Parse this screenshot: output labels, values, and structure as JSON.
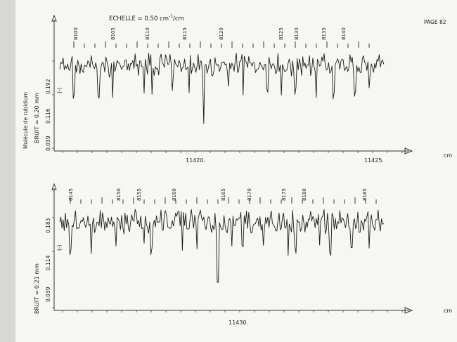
{
  "header": {
    "scale_label": "ECHELLE = 0.50 cm",
    "scale_exp": "-1",
    "scale_unit": "/cm",
    "page_label": "PAGE 82"
  },
  "left_labels": {
    "molecule": "Molécule de rubidium",
    "noise_top": "BRUIT = 0.20 mm",
    "noise_bottom": "BRUIT = 0.21 mm"
  },
  "panels": [
    {
      "y_ticks": [
        "0.192",
        "0.116",
        "0.039"
      ],
      "y_marker": "(-)",
      "top_labels": [
        "8100",
        "8105",
        "8110",
        "8115",
        "8120",
        "8125",
        "8130",
        "8135",
        "8140"
      ],
      "x_labels": [
        "11420.",
        "11425."
      ],
      "unit": "cm"
    },
    {
      "y_ticks": [
        "0.183",
        "0.114",
        "0.039"
      ],
      "y_marker": "(-)",
      "top_labels": [
        "8145",
        "8150",
        "8155",
        "8160",
        "8165",
        "8170",
        "8175",
        "8180",
        "8185"
      ],
      "x_labels": [
        "11430."
      ],
      "unit": "cm"
    }
  ]
}
